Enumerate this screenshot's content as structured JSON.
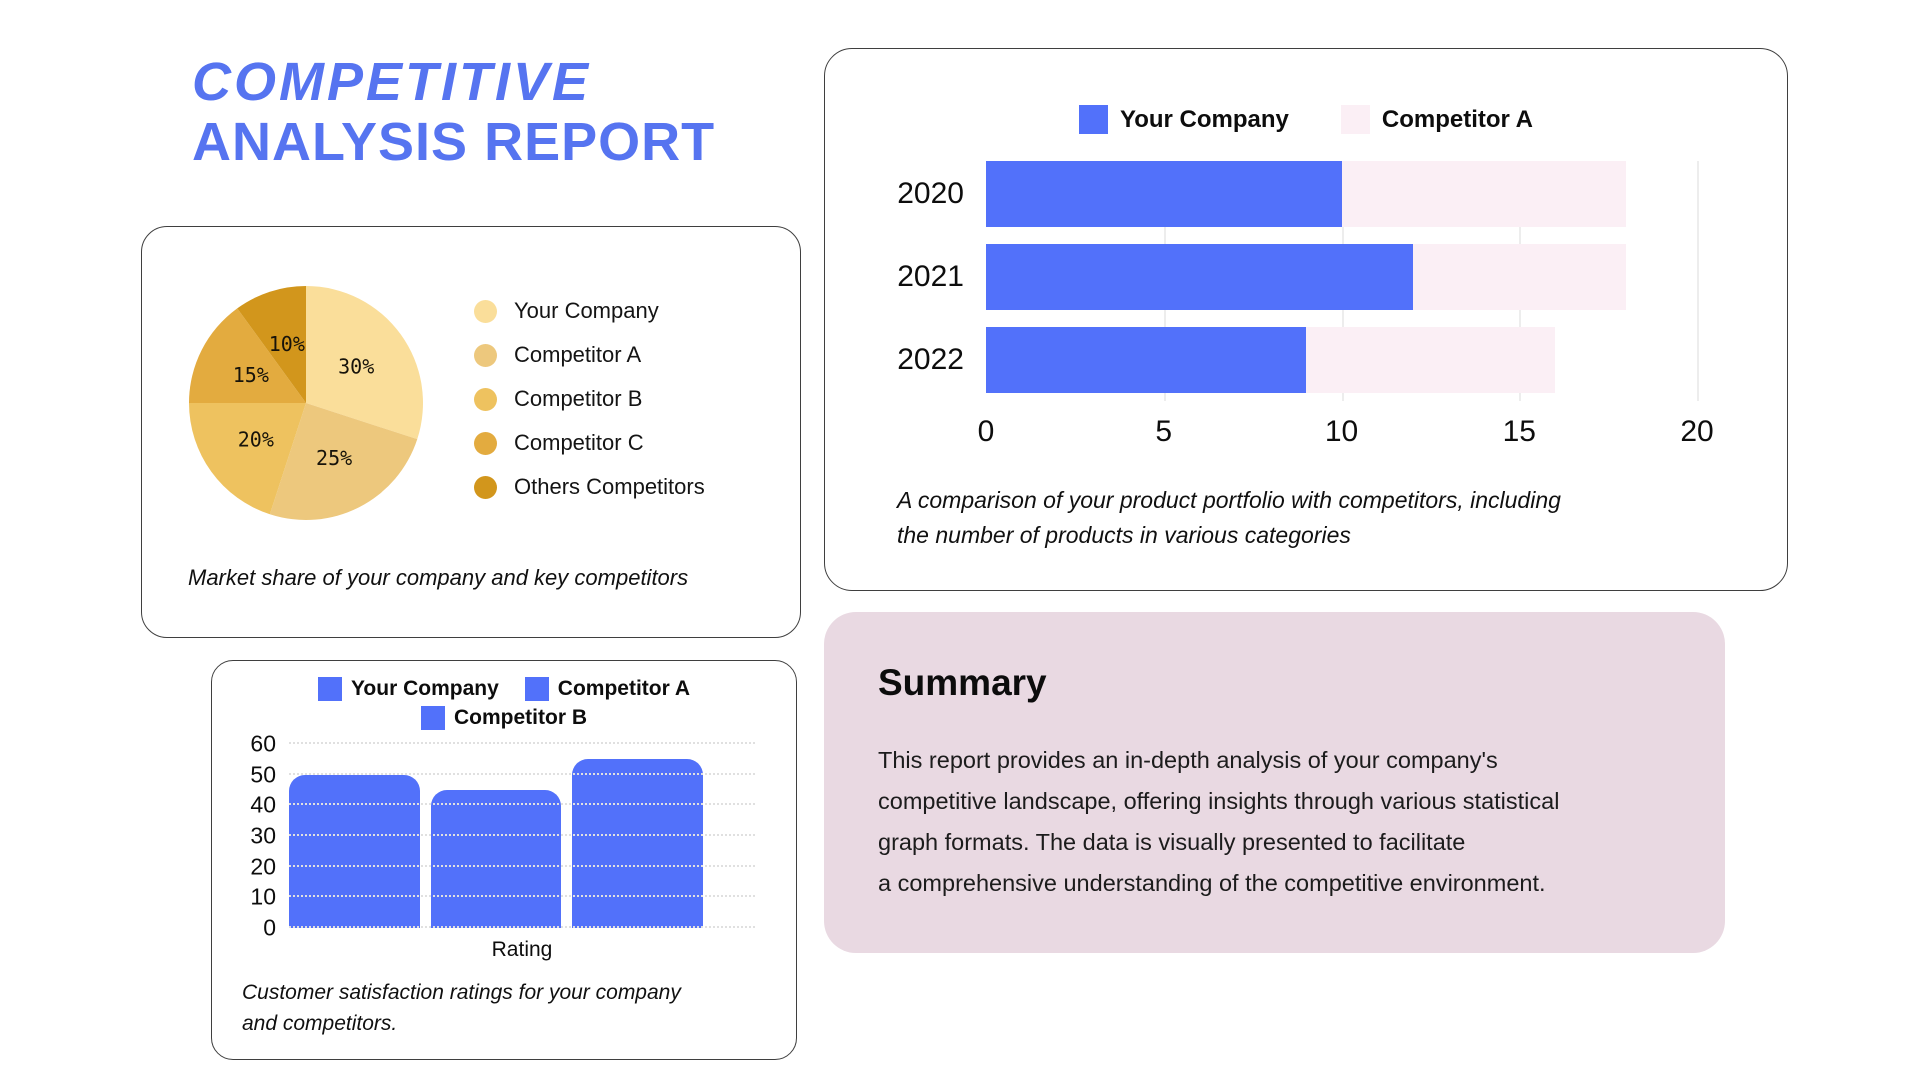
{
  "header": {
    "title_line1": "COMPETITIVE",
    "title_line2": "ANALYSIS REPORT",
    "title_color": "#5674F0"
  },
  "colors": {
    "accent_blue": "#5271FA",
    "accent_pink": "#FBEFF5",
    "summary_background": "#E9D9E2"
  },
  "chart_data": [
    {
      "id": "market-share-pie",
      "type": "pie",
      "labels": [
        "Your Company",
        "Competitor A",
        "Competitor B",
        "Competitor C",
        "Others Competitors"
      ],
      "values": [
        30,
        25,
        20,
        15,
        10
      ],
      "value_labels": [
        "30%",
        "25%",
        "20%",
        "15%",
        "10%"
      ],
      "colors": [
        "#FADE9A",
        "#EDC87D",
        "#EEC25F",
        "#E3AB3F",
        "#D2961C"
      ],
      "start_angle_deg": 0,
      "direction": "clockwise",
      "legend_position": "right",
      "caption": "Market share of your company and key competitors"
    },
    {
      "id": "product-portfolio-bars",
      "type": "bar",
      "orientation": "horizontal",
      "stacked": true,
      "categories": [
        "2020",
        "2021",
        "2022"
      ],
      "series": [
        {
          "name": "Your Company",
          "color": "#5271FA",
          "values": [
            10,
            12,
            9
          ]
        },
        {
          "name": "Competitor A",
          "color": "#FBEFF5",
          "values": [
            8,
            6,
            7
          ],
          "stacked_totals": [
            18,
            18,
            16
          ]
        }
      ],
      "x_ticks": [
        0,
        5,
        10,
        15,
        20
      ],
      "xlim": [
        0,
        20
      ],
      "grid": true,
      "legend_position": "top",
      "caption_lines": [
        "A comparison of your product portfolio with competitors, including",
        "the number of products in various categories"
      ]
    },
    {
      "id": "satisfaction-ratings-bars",
      "type": "bar",
      "orientation": "vertical",
      "categories": [
        "Your Company",
        "Competitor A",
        "Competitor B"
      ],
      "values": [
        50,
        45,
        55
      ],
      "bar_color": "#5271FA",
      "legend": [
        "Your Company",
        "Competitor A",
        "Competitor B"
      ],
      "legend_color": "#5271FA",
      "y_ticks": [
        0,
        10,
        20,
        30,
        40,
        50,
        60
      ],
      "ylim": [
        0,
        60
      ],
      "xlabel": "Rating",
      "grid": true,
      "legend_position": "top",
      "caption_lines": [
        "Customer satisfaction ratings for your company",
        "and competitors."
      ]
    }
  ],
  "summary": {
    "heading": "Summary",
    "body_lines": [
      "This report provides an in-depth analysis of your company's",
      "competitive landscape, offering insights through various statistical",
      "graph formats. The data is visually presented to facilitate",
      "a comprehensive understanding of the competitive environment."
    ]
  }
}
